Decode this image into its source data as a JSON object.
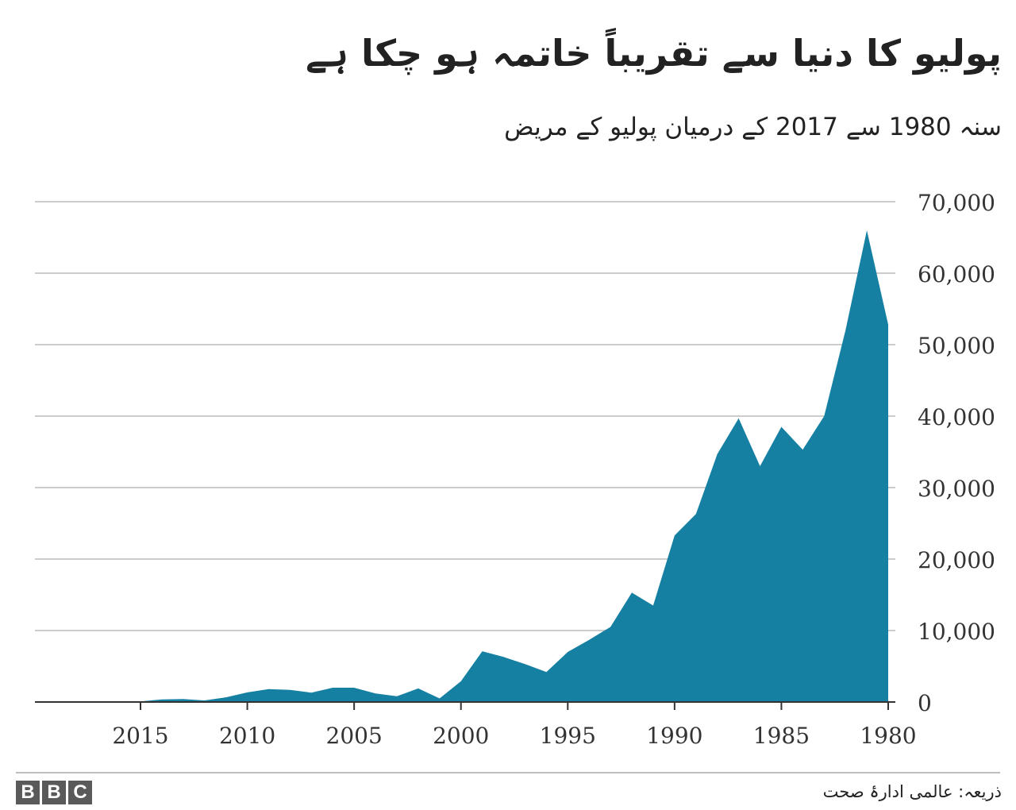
{
  "header": {
    "title": "پولیو کا دنیا سے تقریباً خاتمہ ہو چکا ہے",
    "subtitle": "سنہ 1980 سے 2017 کے درمیان پولیو کے مریض"
  },
  "chart_data": {
    "type": "area",
    "title": "پولیو کا دنیا سے تقریباً خاتمہ ہو چکا ہے",
    "subtitle": "سنہ 1980 سے 2017 کے درمیان پولیو کے مریض",
    "xlabel": "",
    "ylabel": "",
    "x_reversed": true,
    "xlim": [
      1980,
      2018
    ],
    "ylim": [
      0,
      70000
    ],
    "y_ticks": [
      0,
      10000,
      20000,
      30000,
      40000,
      50000,
      60000,
      70000
    ],
    "y_tick_labels": [
      "0",
      "10,000",
      "20,000",
      "30,000",
      "40,000",
      "50,000",
      "60,000",
      "70,000"
    ],
    "x_ticks": [
      1980,
      1985,
      1990,
      1995,
      2000,
      2005,
      2010,
      2015
    ],
    "x_tick_labels": [
      "1980",
      "1985",
      "1990",
      "1995",
      "2000",
      "2005",
      "2010",
      "2015"
    ],
    "grid": true,
    "color": "#1680a3",
    "series": [
      {
        "name": "پولیو کے مریض",
        "x": [
          1980,
          1981,
          1982,
          1983,
          1984,
          1985,
          1986,
          1987,
          1988,
          1989,
          1990,
          1991,
          1992,
          1993,
          1994,
          1995,
          1996,
          1997,
          1998,
          1999,
          2000,
          2001,
          2002,
          2003,
          2004,
          2005,
          2006,
          2007,
          2008,
          2009,
          2010,
          2011,
          2012,
          2013,
          2014,
          2015,
          2016,
          2017
        ],
        "values": [
          52800,
          66000,
          52000,
          40000,
          35300,
          38500,
          33000,
          39700,
          34700,
          26300,
          23300,
          13500,
          15300,
          10500,
          8700,
          7000,
          4200,
          5300,
          6300,
          7100,
          2900,
          500,
          1900,
          800,
          1200,
          2000,
          2000,
          1300,
          1700,
          1800,
          1350,
          650,
          223,
          416,
          359,
          74,
          37,
          22
        ]
      }
    ]
  },
  "footer": {
    "logo_letters": [
      "B",
      "B",
      "C"
    ],
    "source": "ذریعہ: عالمی ادارۂ صحت"
  }
}
